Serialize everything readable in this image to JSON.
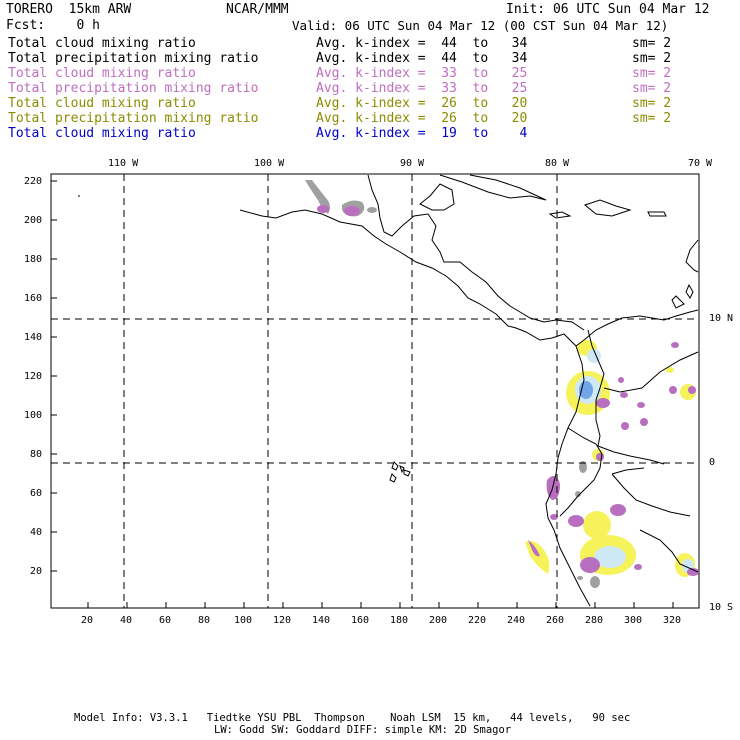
{
  "header": {
    "model": "TORERO  15km ARW",
    "org": "NCAR/MMM",
    "init": "Init: 06 UTC Sun 04 Mar 12",
    "fcst": "Fcst:    0 h",
    "valid": "Valid: 06 UTC Sun 04 Mar 12 (00 CST Sun 04 Mar 12)"
  },
  "legend": [
    {
      "name": "Total cloud mixing ratio",
      "range": "Avg. k-index =  44  to   34",
      "sm": "sm= 2",
      "color": "#000000"
    },
    {
      "name": "Total precipitation mixing ratio",
      "range": "Avg. k-index =  44  to   34",
      "sm": "sm= 2",
      "color": "#000000"
    },
    {
      "name": "Total cloud mixing ratio",
      "range": "Avg. k-index =  33  to   25",
      "sm": "sm= 2",
      "color": "#bf6fbf"
    },
    {
      "name": "Total precipitation mixing ratio",
      "range": "Avg. k-index =  33  to   25",
      "sm": "sm= 2",
      "color": "#bf6fbf"
    },
    {
      "name": "Total cloud mixing ratio",
      "range": "Avg. k-index =  26  to   20",
      "sm": "sm= 2",
      "color": "#8c8c00"
    },
    {
      "name": "Total precipitation mixing ratio",
      "range": "Avg. k-index =  26  to   20",
      "sm": "sm= 2",
      "color": "#8c8c00"
    },
    {
      "name": "Total cloud mixing ratio",
      "range": "Avg. k-index =  19  to    4",
      "sm": "",
      "color": "#0000cc"
    }
  ],
  "map": {
    "top_lon_labels": [
      "110 W",
      "100 W",
      "90 W",
      "80 W",
      "70 W"
    ],
    "right_lat_labels": [
      "10 N",
      "0",
      "10 S"
    ],
    "y_ticks": [
      "220",
      "200",
      "180",
      "160",
      "140",
      "120",
      "100",
      "80",
      "60",
      "40",
      "20"
    ],
    "x_ticks": [
      "20",
      "40",
      "60",
      "80",
      "100",
      "120",
      "140",
      "160",
      "180",
      "200",
      "220",
      "240",
      "260",
      "280",
      "300",
      "320"
    ],
    "colors": {
      "purple": "#b86fc0",
      "gray": "#a0a0a0",
      "yellow": "#f5f25a",
      "lightblue": "#cfe8f6",
      "blue": "#6fa6e8"
    }
  },
  "footer": {
    "line1": "Model Info: V3.3.1   Tiedtke YSU PBL  Thompson    Noah LSM  15 km,   44 levels,   90 sec",
    "line2": "LW: Godd SW: Goddard DIFF: simple KM: 2D Smagor"
  }
}
